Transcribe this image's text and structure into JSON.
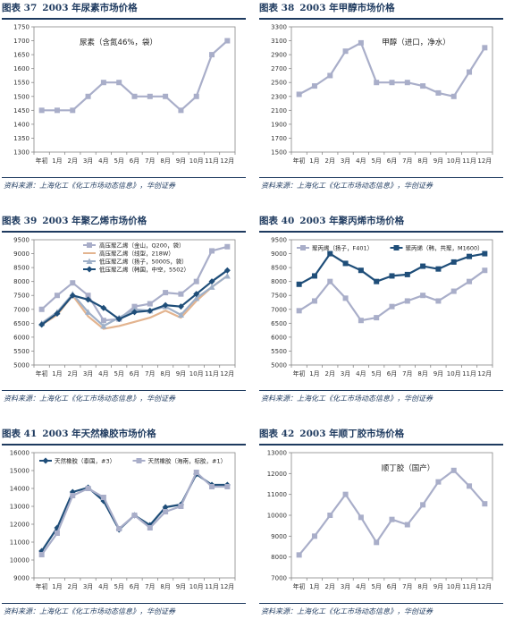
{
  "source_text": "资料来源：上海化工《化工市场动态信息》，华创证券",
  "chart_data": [
    {
      "fig": "图表 37",
      "title": "2003 年尿素市场价格",
      "type": "line",
      "annotation": "尿素（含氮46%，袋）",
      "categories": [
        "年初",
        "1月",
        "2月",
        "3月",
        "4月",
        "5月",
        "6月",
        "7月",
        "8月",
        "9月",
        "10月",
        "11月",
        "12月"
      ],
      "ylim": [
        1300,
        1750
      ],
      "yticks": [
        1300,
        1350,
        1400,
        1450,
        1500,
        1550,
        1600,
        1650,
        1700,
        1750
      ],
      "legend": null,
      "series": [
        {
          "name": "",
          "color": "#a9aec9",
          "marker": "square",
          "values": [
            1450,
            1450,
            1450,
            1500,
            1550,
            1550,
            1500,
            1500,
            1500,
            1450,
            1500,
            1650,
            1700
          ]
        }
      ]
    },
    {
      "fig": "图表 38",
      "title": "2003 年甲醇市场价格",
      "type": "line",
      "annotation": "甲醇（进口，净水）",
      "categories": [
        "年初",
        "1月",
        "2月",
        "3月",
        "4月",
        "5月",
        "6月",
        "7月",
        "8月",
        "9月",
        "10月",
        "11月",
        "12月"
      ],
      "ylim": [
        1500,
        3300
      ],
      "yticks": [
        1500,
        1700,
        1900,
        2100,
        2300,
        2500,
        2700,
        2900,
        3100,
        3300
      ],
      "legend": null,
      "series": [
        {
          "name": "",
          "color": "#a9aec9",
          "marker": "square",
          "values": [
            2330,
            2450,
            2600,
            2950,
            3070,
            2500,
            2500,
            2500,
            2450,
            2350,
            2300,
            2650,
            3000
          ]
        }
      ]
    },
    {
      "fig": "图表 39",
      "title": "2003 年聚乙烯市场价格",
      "type": "line",
      "annotation": "",
      "categories": [
        "年初",
        "1月",
        "2月",
        "3月",
        "4月",
        "5月",
        "6月",
        "7月",
        "8月",
        "9月",
        "10月",
        "11月",
        "12月"
      ],
      "ylim": [
        5000,
        9500
      ],
      "yticks": [
        5000,
        5500,
        6000,
        6500,
        7000,
        7500,
        8000,
        8500,
        9000,
        9500
      ],
      "legend": "top-right",
      "series": [
        {
          "name": "高压聚乙烯（金山，Q200，袋）",
          "color": "#a9aec9",
          "marker": "square",
          "values": [
            7000,
            7500,
            7950,
            7500,
            6600,
            6650,
            7100,
            7200,
            7600,
            7550,
            8000,
            9100,
            9250
          ]
        },
        {
          "name": "高压聚乙烯（线型，218W）",
          "color": "#e3b48f",
          "marker": "none",
          "values": [
            6450,
            6800,
            7500,
            6750,
            6300,
            6400,
            6550,
            6700,
            6950,
            6700,
            7300,
            7800,
            8200
          ]
        },
        {
          "name": "低压聚乙烯（扬子，5000S，袋）",
          "color": "#9fb0c8",
          "marker": "triangle",
          "values": [
            6500,
            6900,
            7550,
            6900,
            6400,
            6700,
            7000,
            6950,
            7100,
            6800,
            7400,
            7800,
            8200
          ]
        },
        {
          "name": "低压聚乙烯（韩国，中空，5502）",
          "color": "#1f4e79",
          "marker": "diamond",
          "values": [
            6450,
            6850,
            7500,
            7350,
            7050,
            6650,
            6900,
            6950,
            7150,
            7100,
            7550,
            8000,
            8400
          ]
        }
      ]
    },
    {
      "fig": "图表 40",
      "title": "2003 年聚丙烯市场价格",
      "type": "line",
      "annotation": "",
      "categories": [
        "年初",
        "1月",
        "2月",
        "3月",
        "4月",
        "5月",
        "6月",
        "7月",
        "8月",
        "9月",
        "10月",
        "11月",
        "12月"
      ],
      "ylim": [
        5000,
        9500
      ],
      "yticks": [
        5000,
        5500,
        6000,
        6500,
        7000,
        7500,
        8000,
        8500,
        9000,
        9500
      ],
      "legend": "top",
      "series": [
        {
          "name": "聚丙烯（扬子，F401）",
          "color": "#a9aec9",
          "marker": "square",
          "values": [
            6950,
            7300,
            8000,
            7400,
            6600,
            6700,
            7100,
            7300,
            7500,
            7300,
            7650,
            8000,
            8400
          ]
        },
        {
          "name": "聚丙烯（韩，共聚，M1600）",
          "color": "#1f4e79",
          "marker": "square",
          "values": [
            7900,
            8200,
            9000,
            8650,
            8400,
            8000,
            8200,
            8250,
            8550,
            8450,
            8700,
            8900,
            9000
          ]
        }
      ]
    },
    {
      "fig": "图表 41",
      "title": "2003 年天然橡胶市场价格",
      "type": "line",
      "annotation": "",
      "categories": [
        "年初",
        "1月",
        "2月",
        "3月",
        "4月",
        "5月",
        "6月",
        "7月",
        "8月",
        "9月",
        "10月",
        "11月",
        "12月"
      ],
      "ylim": [
        9000,
        16000
      ],
      "yticks": [
        9000,
        10000,
        11000,
        12000,
        13000,
        14000,
        15000,
        16000
      ],
      "legend": "top",
      "series": [
        {
          "name": "天然橡胶（泰国，#3）",
          "color": "#1f4e79",
          "marker": "diamond",
          "values": [
            10500,
            11800,
            13800,
            14050,
            13300,
            11700,
            12500,
            11950,
            12950,
            13100,
            14800,
            14200,
            14200
          ]
        },
        {
          "name": "天然橡胶（海南，标胶，#1）",
          "color": "#a9aec9",
          "marker": "square",
          "values": [
            10300,
            11500,
            13600,
            14000,
            13500,
            11750,
            12500,
            11800,
            12700,
            13000,
            14900,
            14100,
            14100
          ]
        }
      ]
    },
    {
      "fig": "图表 42",
      "title": "2003 年顺丁胶市场价格",
      "type": "line",
      "annotation": "顺丁胶（国产）",
      "categories": [
        "年初",
        "1月",
        "2月",
        "3月",
        "4月",
        "5月",
        "6月",
        "7月",
        "8月",
        "9月",
        "10月",
        "11月",
        "12月"
      ],
      "ylim": [
        7000,
        13000
      ],
      "yticks": [
        7000,
        8000,
        9000,
        10000,
        11000,
        12000,
        13000
      ],
      "legend": null,
      "series": [
        {
          "name": "",
          "color": "#a9aec9",
          "marker": "square",
          "values": [
            8100,
            9000,
            10000,
            11000,
            9900,
            8700,
            9800,
            9550,
            10500,
            11600,
            12150,
            11400,
            10550
          ]
        }
      ]
    }
  ]
}
